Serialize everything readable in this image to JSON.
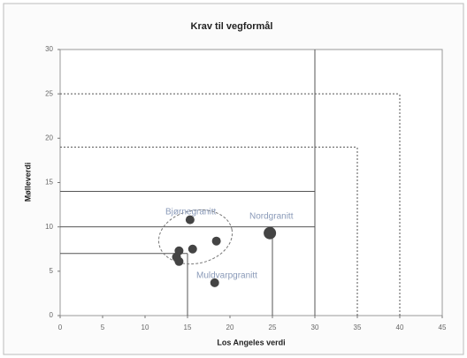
{
  "chart_data": {
    "type": "scatter",
    "title": "Krav til vegformål",
    "x_label": "Los Angeles verdi",
    "y_label": "Mølleverdi",
    "x": [
      15.3,
      13.7,
      14,
      14,
      15.6,
      18.4,
      18.2,
      24.7
    ],
    "values": [
      10.8,
      6.6,
      7.3,
      6.1,
      7.5,
      8.4,
      3.7,
      9.3
    ],
    "color": "#444",
    "xlim": [
      0,
      45
    ],
    "xticks": [
      0,
      5,
      10,
      15,
      20,
      25,
      30,
      35,
      40,
      45
    ],
    "ylim": [
      0,
      30
    ],
    "yticks": [
      0,
      5,
      10,
      15,
      20,
      25,
      30
    ],
    "reference_lines": [
      {
        "x": [
          0,
          30
        ],
        "y": [
          14,
          14
        ],
        "dashed": false
      },
      {
        "x": [
          0,
          30
        ],
        "y": [
          10,
          10
        ],
        "dashed": false
      },
      {
        "x": [
          0,
          15
        ],
        "y": [
          7,
          7
        ],
        "dashed": false
      },
      {
        "x": [
          15,
          15
        ],
        "y": [
          0,
          7
        ],
        "dashed": false
      },
      {
        "x": [
          25,
          25
        ],
        "y": [
          0,
          10
        ],
        "dashed": false
      },
      {
        "x": [
          30,
          30
        ],
        "y": [
          0,
          30
        ],
        "dashed": false
      },
      {
        "x": [
          0,
          40
        ],
        "y": [
          25,
          25
        ],
        "dashed": true
      },
      {
        "x": [
          40,
          40
        ],
        "y": [
          0,
          25
        ],
        "dashed": true
      },
      {
        "x": [
          0,
          35
        ],
        "y": [
          19,
          19
        ],
        "dashed": true
      },
      {
        "x": [
          35,
          35
        ],
        "y": [
          0,
          19
        ],
        "dashed": true
      }
    ],
    "annotations": [
      "Bjørnegranitt",
      "Nordgranitt",
      "Muldvarpgranitt"
    ]
  }
}
